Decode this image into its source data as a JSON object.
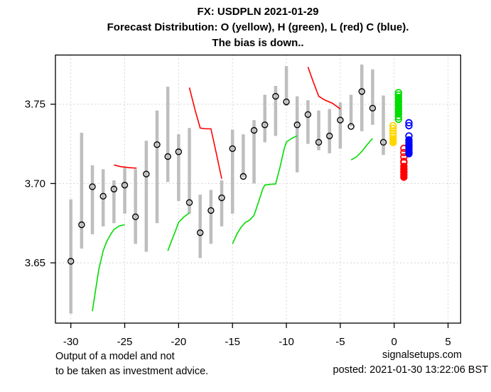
{
  "title": {
    "line1": "FX: USDPLN 2021-01-29",
    "line2": "Forecast Distribution: O (yellow), H (green), L (red) C (blue).",
    "line3": "The bias is down.."
  },
  "footer": {
    "disclaimer1": "Output of a model and not",
    "disclaimer2": "to be taken as investment advice.",
    "site": "signalsetups.com",
    "posted": "posted: 2021-01-30 13:22:06 BST"
  },
  "chart_data": {
    "type": "hilo-close bar + line + scatter",
    "title": "FX: USDPLN 2021-01-29",
    "xlabel": "",
    "ylabel": "",
    "xlim": [
      -31.43,
      6.17
    ],
    "ylim": [
      3.612,
      3.781
    ],
    "xticks": [
      -30,
      -25,
      -20,
      -15,
      -10,
      -5,
      0,
      5
    ],
    "yticks": [
      3.65,
      3.7,
      3.75
    ],
    "grid": true,
    "colors": {
      "bar": "#BEBEBE",
      "close_marker": "#000000",
      "grid": "#D4D4D4",
      "box": "#000000",
      "red": "#FF0000",
      "green": "#00DD00",
      "yellow": "#FFD700",
      "blue": "#0000FF"
    },
    "bars": [
      {
        "t": -30,
        "high": 3.69,
        "low": 3.618,
        "close": 3.651
      },
      {
        "t": -29,
        "high": 3.732,
        "low": 3.659,
        "close": 3.674
      },
      {
        "t": -28,
        "high": 3.7115,
        "low": 3.668,
        "close": 3.698
      },
      {
        "t": -27,
        "high": 3.709,
        "low": 3.673,
        "close": 3.692
      },
      {
        "t": -26,
        "high": 3.702,
        "low": 3.675,
        "close": 3.6965
      },
      {
        "t": -25,
        "high": 3.71,
        "low": 3.681,
        "close": 3.699
      },
      {
        "t": -24,
        "high": 3.709,
        "low": 3.662,
        "close": 3.679
      },
      {
        "t": -23,
        "high": 3.727,
        "low": 3.657,
        "close": 3.706
      },
      {
        "t": -22,
        "high": 3.746,
        "low": 3.675,
        "close": 3.7245
      },
      {
        "t": -21,
        "high": 3.761,
        "low": 3.701,
        "close": 3.717
      },
      {
        "t": -20,
        "high": 3.731,
        "low": 3.689,
        "close": 3.72
      },
      {
        "t": -19,
        "high": 3.735,
        "low": 3.681,
        "close": 3.688
      },
      {
        "t": -18,
        "high": 3.693,
        "low": 3.653,
        "close": 3.669
      },
      {
        "t": -17,
        "high": 3.696,
        "low": 3.662,
        "close": 3.683
      },
      {
        "t": -16,
        "high": 3.702,
        "low": 3.673,
        "close": 3.691
      },
      {
        "t": -15,
        "high": 3.734,
        "low": 3.681,
        "close": 3.722
      },
      {
        "t": -14,
        "high": 3.731,
        "low": 3.704,
        "close": 3.7045
      },
      {
        "t": -13,
        "high": 3.74,
        "low": 3.7,
        "close": 3.7335
      },
      {
        "t": -12,
        "high": 3.756,
        "low": 3.726,
        "close": 3.737
      },
      {
        "t": -11,
        "high": 3.7615,
        "low": 3.73,
        "close": 3.755
      },
      {
        "t": -10,
        "high": 3.774,
        "low": 3.749,
        "close": 3.7515
      },
      {
        "t": -9,
        "high": 3.755,
        "low": 3.707,
        "close": 3.737
      },
      {
        "t": -8,
        "high": 3.7525,
        "low": 3.725,
        "close": 3.7435
      },
      {
        "t": -7,
        "high": 3.746,
        "low": 3.721,
        "close": 3.726
      },
      {
        "t": -6,
        "high": 3.747,
        "low": 3.719,
        "close": 3.73
      },
      {
        "t": -5,
        "high": 3.751,
        "low": 3.722,
        "close": 3.74
      },
      {
        "t": -4,
        "high": 3.756,
        "low": 3.736,
        "close": 3.736
      },
      {
        "t": -3,
        "high": 3.775,
        "low": 3.733,
        "close": 3.758
      },
      {
        "t": -2,
        "high": 3.772,
        "low": 3.737,
        "close": 3.7475
      },
      {
        "t": -1,
        "high": 3.7555,
        "low": 3.718,
        "close": 3.726
      }
    ],
    "line_segments": [
      {
        "color_key": "green",
        "points": [
          [
            -28,
            3.6195
          ],
          [
            -27.7,
            3.633
          ],
          [
            -27.4,
            3.646
          ],
          [
            -27,
            3.6575
          ],
          [
            -26.7,
            3.663
          ],
          [
            -26.3,
            3.668
          ],
          [
            -26,
            3.671
          ],
          [
            -25.5,
            3.6733
          ],
          [
            -25,
            3.674
          ]
        ]
      },
      {
        "color_key": "green",
        "points": [
          [
            -21,
            3.6575
          ],
          [
            -20.7,
            3.663
          ],
          [
            -20.3,
            3.67
          ],
          [
            -20,
            3.6755
          ],
          [
            -19.5,
            3.679
          ],
          [
            -19,
            3.6815
          ]
        ]
      },
      {
        "color_key": "green",
        "points": [
          [
            -15,
            3.662
          ],
          [
            -14.6,
            3.668
          ],
          [
            -14.2,
            3.6725
          ],
          [
            -13.8,
            3.6755
          ],
          [
            -13.4,
            3.677
          ],
          [
            -13,
            3.68
          ],
          [
            -12.6,
            3.688
          ],
          [
            -12.2,
            3.6965
          ],
          [
            -12,
            3.699
          ],
          [
            -11.5,
            3.6995
          ],
          [
            -11,
            3.6997
          ],
          [
            -10.6,
            3.71
          ],
          [
            -10.2,
            3.722
          ],
          [
            -10,
            3.7261
          ],
          [
            -9.5,
            3.7285
          ],
          [
            -9,
            3.7301
          ]
        ]
      },
      {
        "color_key": "green",
        "points": [
          [
            -4,
            3.7149
          ],
          [
            -3.5,
            3.7168
          ],
          [
            -3,
            3.7202
          ],
          [
            -2.5,
            3.7246
          ],
          [
            -2,
            3.7284
          ]
        ]
      },
      {
        "color_key": "red",
        "points": [
          [
            -26,
            3.7117
          ],
          [
            -25.4,
            3.7107
          ],
          [
            -24.6,
            3.71
          ],
          [
            -23.9,
            3.7097
          ]
        ]
      },
      {
        "color_key": "red",
        "points": [
          [
            -19,
            3.7605
          ],
          [
            -18.5,
            3.747
          ],
          [
            -18,
            3.735
          ],
          [
            -17.5,
            3.7345
          ],
          [
            -17,
            3.7345
          ],
          [
            -16.5,
            3.719
          ],
          [
            -16,
            3.703
          ]
        ]
      },
      {
        "color_key": "red",
        "points": [
          [
            -8,
            3.7735
          ],
          [
            -7.5,
            3.764
          ],
          [
            -7,
            3.755
          ],
          [
            -6.4,
            3.7525
          ],
          [
            -5.7,
            3.7505
          ],
          [
            -5,
            3.747
          ]
        ]
      }
    ],
    "clusters": [
      {
        "name": "open-forecast",
        "letter": "O",
        "color_key": "yellow",
        "x": -0.1,
        "open_values": [
          3.7365,
          3.7348,
          3.7332,
          3.7316,
          3.73
        ],
        "filled_values": [
          3.7282,
          3.7265,
          3.7258
        ]
      },
      {
        "name": "high-forecast",
        "letter": "H",
        "color_key": "green",
        "x": 0.4,
        "open_values": [
          3.7573,
          3.7558,
          3.742,
          3.7405
        ],
        "filled_values": [
          3.7543,
          3.7528,
          3.7513,
          3.7498,
          3.7483,
          3.7468,
          3.7453,
          3.7438
        ]
      },
      {
        "name": "low-forecast",
        "letter": "L",
        "color_key": "red",
        "x": 0.9,
        "open_values": [
          3.7222,
          3.7195,
          3.7168,
          3.714,
          3.7132
        ],
        "filled_values": [
          3.7108,
          3.709,
          3.7072,
          3.7055,
          3.704
        ]
      },
      {
        "name": "close-forecast",
        "letter": "C",
        "color_key": "blue",
        "x": 1.37,
        "open_values": [
          3.7383,
          3.7365,
          3.73,
          3.724,
          3.7188
        ],
        "filled_values": [
          3.7275,
          3.7258,
          3.7242,
          3.7226,
          3.721,
          3.7195
        ]
      }
    ]
  }
}
